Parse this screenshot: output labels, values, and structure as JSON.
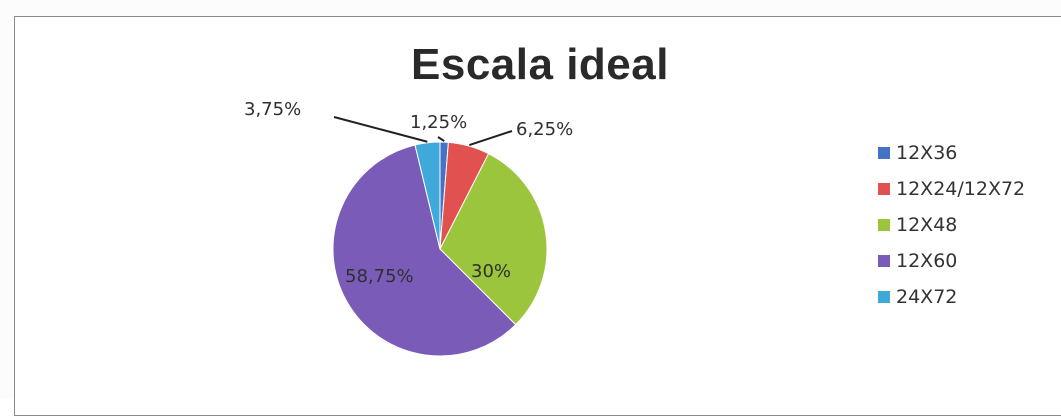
{
  "chart_data": {
    "type": "pie",
    "title": "Escala ideal",
    "categories": [
      "12X36",
      "12X24/12X72",
      "12X48",
      "12X60",
      "24X72"
    ],
    "values": [
      1.25,
      6.25,
      30,
      58.75,
      3.75
    ],
    "data_labels": [
      "1,25%",
      "6,25%",
      "30%",
      "58,75%",
      "3,75%"
    ],
    "colors": [
      "#4472C4",
      "#E0514F",
      "#9BC53D",
      "#7B5BB8",
      "#3FA9D9"
    ],
    "legend": "right",
    "start_angle_deg": 0,
    "direction": "clockwise"
  }
}
